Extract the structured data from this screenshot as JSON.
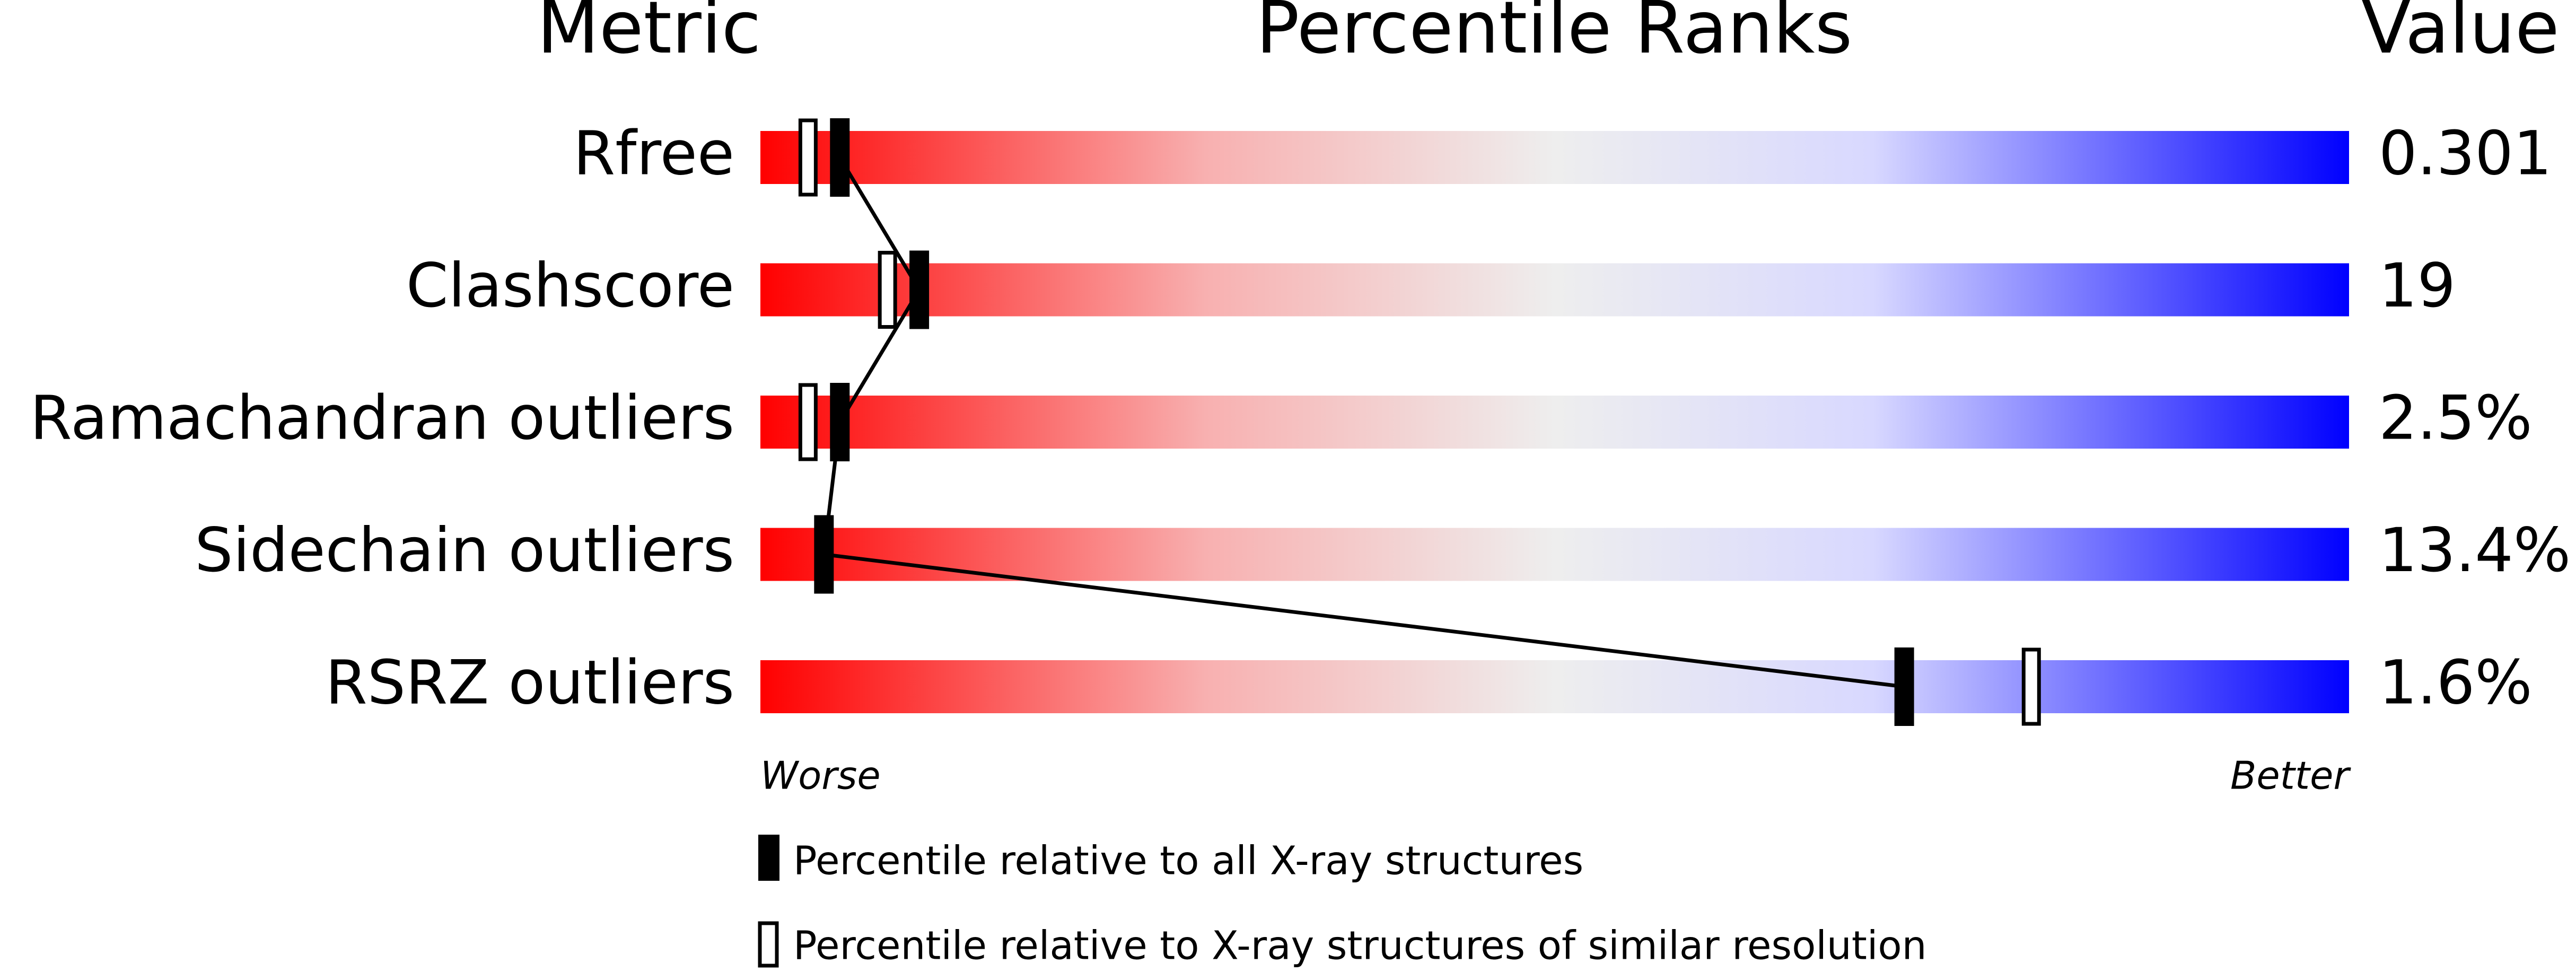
{
  "chart_data": {
    "type": "percentile",
    "headers": [
      "Metric",
      "Percentile Ranks",
      "Value"
    ],
    "categories": [
      "Rfree",
      "Clashscore",
      "Ramachandran outliers",
      "Sidechain outliers",
      "RSRZ outliers"
    ],
    "metric_values": [
      "0.301",
      "19",
      "2.5%",
      "13.4%",
      "1.6%"
    ],
    "series": [
      {
        "name": "Percentile relative to all X-ray structures",
        "color": "#000000",
        "values": [
          5,
          10,
          5,
          4,
          72
        ]
      },
      {
        "name": "Percentile relative to X-ray structures of similar resolution",
        "color": "#ffffff",
        "values": [
          3,
          8,
          3,
          4,
          80
        ]
      }
    ],
    "xlim": [
      0,
      100
    ],
    "x_left_label": "Worse",
    "x_right_label": "Better"
  }
}
